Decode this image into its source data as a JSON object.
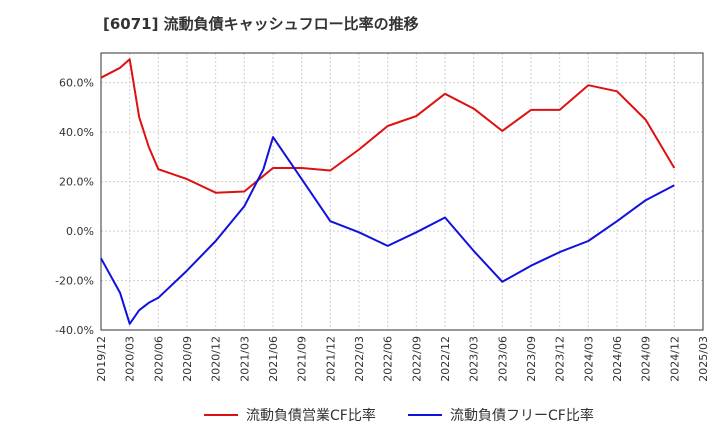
{
  "title": "[6071]  流動負債キャッシュフロー比率の推移",
  "colors": {
    "operating": "#dd1111",
    "free": "#1111dd",
    "grid": "#d0d0d0",
    "axis": "#333333"
  },
  "chart_data": {
    "type": "line",
    "title": "[6071]  流動負債キャッシュフロー比率の推移",
    "xlabel": "",
    "ylabel": "",
    "ylim": [
      -40,
      72
    ],
    "y_ticks": [
      "-40.0%",
      "-20.0%",
      "0.0%",
      "20.0%",
      "40.0%",
      "60.0%"
    ],
    "y_tick_values": [
      -40,
      -20,
      0,
      20,
      40,
      60
    ],
    "x_ticks": [
      "2019/12",
      "2020/03",
      "2020/06",
      "2020/09",
      "2020/12",
      "2021/03",
      "2021/06",
      "2021/09",
      "2021/12",
      "2022/03",
      "2022/06",
      "2022/09",
      "2022/12",
      "2023/03",
      "2023/06",
      "2023/09",
      "2023/12",
      "2024/03",
      "2024/06",
      "2024/09",
      "2024/12",
      "2025/03"
    ],
    "grid": true,
    "legend_position": "bottom",
    "series": [
      {
        "name": "流動負債営業CF比率",
        "color": "#dd1111",
        "points": [
          [
            "2019/12",
            62
          ],
          [
            "2020/02",
            66
          ],
          [
            "2020/03",
            69.5
          ],
          [
            "2020/04",
            46
          ],
          [
            "2020/05",
            34
          ],
          [
            "2020/06",
            25
          ],
          [
            "2020/09",
            21
          ],
          [
            "2020/12",
            15.5
          ],
          [
            "2021/03",
            16
          ],
          [
            "2021/06",
            25.5
          ],
          [
            "2021/09",
            25.5
          ],
          [
            "2021/12",
            24.5
          ],
          [
            "2022/03",
            33
          ],
          [
            "2022/06",
            42.5
          ],
          [
            "2022/09",
            46.5
          ],
          [
            "2022/12",
            55.5
          ],
          [
            "2023/03",
            49.5
          ],
          [
            "2023/06",
            40.5
          ],
          [
            "2023/09",
            49
          ],
          [
            "2023/12",
            49
          ],
          [
            "2024/03",
            59
          ],
          [
            "2024/06",
            56.5
          ],
          [
            "2024/09",
            45
          ],
          [
            "2024/12",
            25.5
          ]
        ]
      },
      {
        "name": "流動負債フリーCF比率",
        "color": "#1111dd",
        "points": [
          [
            "2019/12",
            -11
          ],
          [
            "2020/02",
            -25
          ],
          [
            "2020/03",
            -37.5
          ],
          [
            "2020/04",
            -32
          ],
          [
            "2020/05",
            -29
          ],
          [
            "2020/06",
            -27
          ],
          [
            "2020/09",
            -16
          ],
          [
            "2020/12",
            -4
          ],
          [
            "2021/03",
            10
          ],
          [
            "2021/05",
            25
          ],
          [
            "2021/06",
            38
          ],
          [
            "2021/09",
            21
          ],
          [
            "2021/12",
            4
          ],
          [
            "2022/03",
            -0.5
          ],
          [
            "2022/06",
            -6
          ],
          [
            "2022/09",
            -0.5
          ],
          [
            "2022/12",
            5.5
          ],
          [
            "2023/03",
            -8
          ],
          [
            "2023/06",
            -20.5
          ],
          [
            "2023/09",
            -14
          ],
          [
            "2023/12",
            -8.5
          ],
          [
            "2024/03",
            -4
          ],
          [
            "2024/06",
            4
          ],
          [
            "2024/09",
            12.5
          ],
          [
            "2024/12",
            18.5
          ]
        ]
      }
    ]
  }
}
